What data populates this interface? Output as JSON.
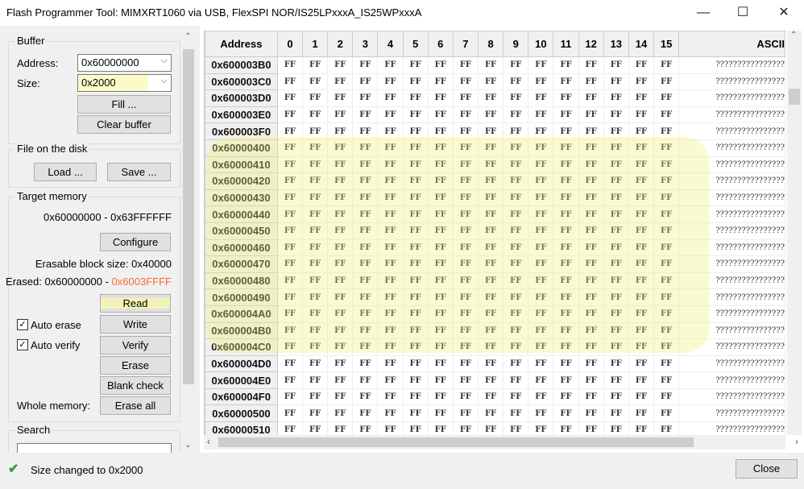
{
  "window": {
    "title": "Flash Programmer Tool:   MIMXRT1060 via USB,   FlexSPI NOR/IS25LPxxxA_IS25WPxxxA",
    "minimize": "—",
    "maximize": "☐",
    "close": "✕"
  },
  "buffer": {
    "label": "Buffer",
    "address_label": "Address:",
    "address_value": "0x60000000",
    "size_label": "Size:",
    "size_value": "0x2000",
    "fill": "Fill ...",
    "clear": "Clear buffer"
  },
  "file": {
    "label": "File on the disk",
    "load": "Load ...",
    "save": "Save ..."
  },
  "target": {
    "label": "Target memory",
    "range": "0x60000000 - 0x63FFFFFF",
    "configure": "Configure",
    "erasable": "Erasable block size: 0x40000",
    "erased_prefix": "Erased: 0x60000000 - ",
    "erased_end": "0x6003FFFF",
    "erased_end_color": "#f26b3a",
    "read": "Read",
    "write": "Write",
    "verify": "Verify",
    "erase": "Erase",
    "blank_check": "Blank check",
    "erase_all": "Erase all",
    "auto_erase": "Auto erase",
    "auto_erase_checked": true,
    "auto_verify": "Auto verify",
    "auto_verify_checked": true,
    "whole_memory": "Whole memory:"
  },
  "search": {
    "label": "Search",
    "value": ""
  },
  "table": {
    "headers": [
      "Address",
      "0",
      "1",
      "2",
      "3",
      "4",
      "5",
      "6",
      "7",
      "8",
      "9",
      "10",
      "11",
      "12",
      "13",
      "14",
      "15",
      "ASCII"
    ],
    "rows": [
      {
        "address": "0x600003B0"
      },
      {
        "address": "0x600003C0"
      },
      {
        "address": "0x600003D0"
      },
      {
        "address": "0x600003E0"
      },
      {
        "address": "0x600003F0"
      },
      {
        "address": "0x60000400"
      },
      {
        "address": "0x60000410"
      },
      {
        "address": "0x60000420"
      },
      {
        "address": "0x60000430"
      },
      {
        "address": "0x60000440"
      },
      {
        "address": "0x60000450"
      },
      {
        "address": "0x60000460"
      },
      {
        "address": "0x60000470"
      },
      {
        "address": "0x60000480"
      },
      {
        "address": "0x60000490"
      },
      {
        "address": "0x600004A0"
      },
      {
        "address": "0x600004B0"
      },
      {
        "address": "0x600004C0"
      },
      {
        "address": "0x600004D0"
      },
      {
        "address": "0x600004E0"
      },
      {
        "address": "0x600004F0"
      },
      {
        "address": "0x60000500"
      },
      {
        "address": "0x60000510"
      }
    ],
    "byte_value": "FF",
    "ascii_value": "????????????????"
  },
  "status": {
    "icon": "checkmark-icon",
    "text": "Size changed to 0x2000",
    "close": "Close",
    "icon_color": "#2e9e3e"
  }
}
